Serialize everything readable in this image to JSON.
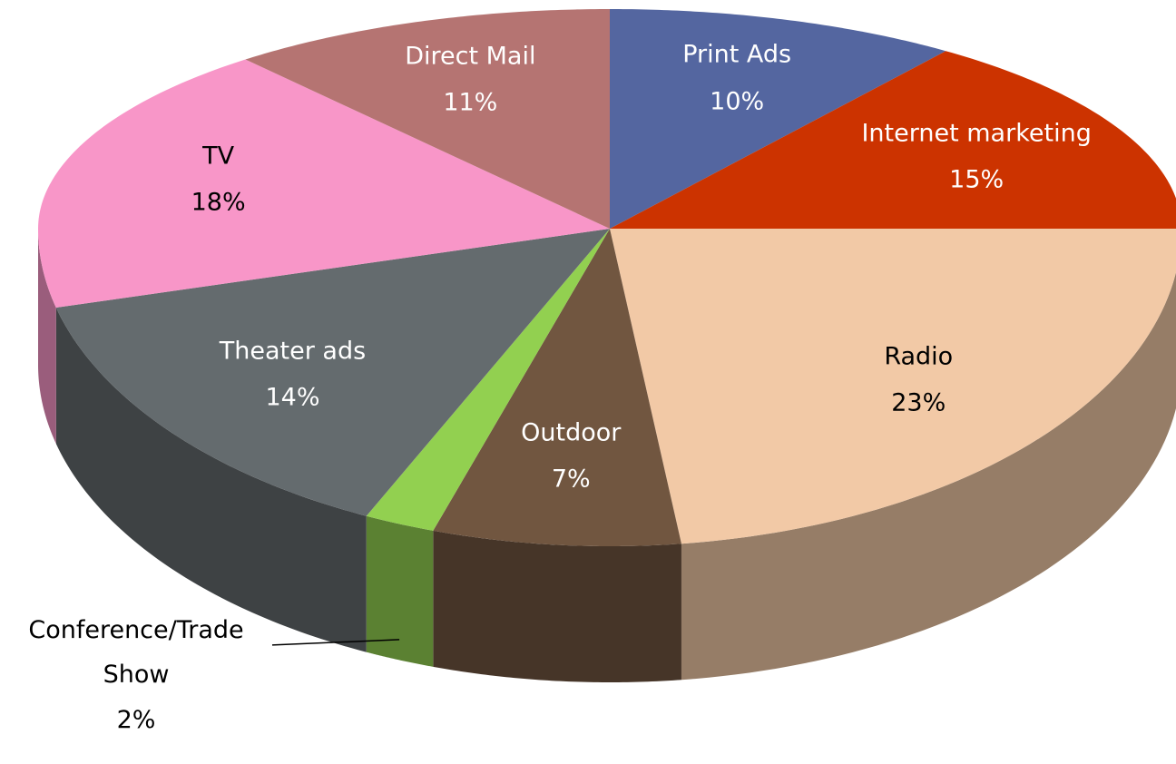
{
  "chart_data": {
    "type": "pie3d",
    "categories": [
      "Print Ads",
      "Internet marketing",
      "Radio",
      "Outdoor",
      "Conference/Trade Show",
      "Theater ads",
      "TV",
      "Direct Mail"
    ],
    "values": [
      10,
      15,
      23,
      7,
      2,
      14,
      18,
      11
    ],
    "value_labels": [
      "10%",
      "15%",
      "23%",
      "7%",
      "2%",
      "14%",
      "18%",
      "11%"
    ],
    "colors": [
      "#5466a0",
      "#cc3300",
      "#f2c9a6",
      "#715640",
      "#92d050",
      "#646b6e",
      "#f896c8",
      "#b57472"
    ]
  }
}
